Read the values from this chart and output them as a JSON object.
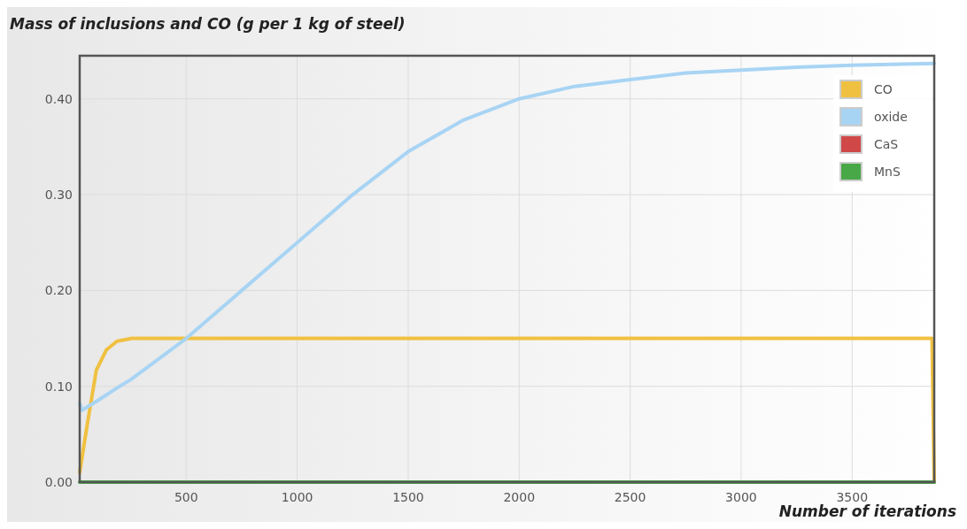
{
  "chart_data": {
    "type": "line",
    "title": "Mass of inclusions and CO (g per 1 kg of steel)",
    "xlabel": "Number of iterations",
    "xlim": [
      20,
      3870
    ],
    "ylim": [
      0,
      0.445
    ],
    "xticks": [
      500,
      1000,
      1500,
      2000,
      2500,
      3000,
      3500
    ],
    "yticks": [
      {
        "value": 0,
        "label": "0.00"
      },
      {
        "value": 0.1,
        "label": "0.10"
      },
      {
        "value": 0.2,
        "label": "0.20"
      },
      {
        "value": 0.3,
        "label": "0.30"
      },
      {
        "value": 0.4,
        "label": "0.40"
      }
    ],
    "grid": true,
    "legend": "top right",
    "line_style": "solid",
    "marker": "none",
    "series": [
      {
        "name": "CO",
        "color": "#f0c040",
        "x": [
          20,
          54,
          95,
          140,
          188,
          255,
          400,
          1000,
          2000,
          3000,
          3860,
          3870
        ],
        "values": [
          0.01,
          0.06,
          0.117,
          0.138,
          0.147,
          0.15,
          0.15,
          0.15,
          0.15,
          0.15,
          0.15,
          0
        ]
      },
      {
        "name": "oxide",
        "color": "#a8d4f4",
        "x": [
          20,
          30,
          100,
          200,
          250,
          500,
          750,
          1000,
          1250,
          1500,
          1750,
          2000,
          2250,
          2500,
          2750,
          3000,
          3250,
          3500,
          3870
        ],
        "values": [
          0.082,
          0.075,
          0.085,
          0.1,
          0.107,
          0.15,
          0.2,
          0.25,
          0.3,
          0.345,
          0.378,
          0.4,
          0.413,
          0.42,
          0.427,
          0.43,
          0.433,
          0.435,
          0.437
        ]
      },
      {
        "name": "CaS",
        "color": "#d04848"
      },
      {
        "name": "MnS",
        "color": "#48a848",
        "x": [
          20,
          3870
        ],
        "values": [
          0,
          0
        ]
      }
    ]
  }
}
